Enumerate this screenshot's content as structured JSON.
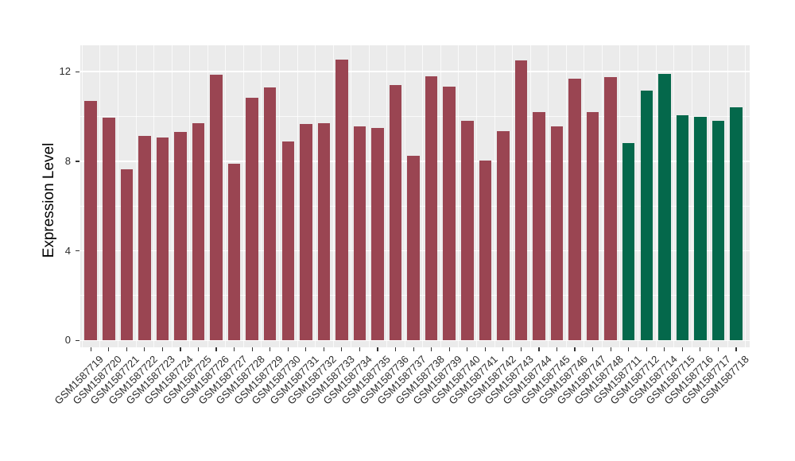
{
  "chart_data": {
    "type": "bar",
    "title": "",
    "xlabel": "",
    "ylabel": "Expression Level",
    "yticks": [
      0,
      4,
      8,
      12
    ],
    "ylim": [
      0,
      13.2
    ],
    "grid": "white major/minor gridlines on grey panel, legend none",
    "legend_position": "none",
    "categories": [
      "GSM1587719",
      "GSM1587720",
      "GSM1587721",
      "GSM1587722",
      "GSM1587723",
      "GSM1587724",
      "GSM1587725",
      "GSM1587726",
      "GSM1587727",
      "GSM1587728",
      "GSM1587729",
      "GSM1587730",
      "GSM1587731",
      "GSM1587732",
      "GSM1587733",
      "GSM1587734",
      "GSM1587735",
      "GSM1587736",
      "GSM1587737",
      "GSM1587738",
      "GSM1587739",
      "GSM1587740",
      "GSM1587741",
      "GSM1587742",
      "GSM1587743",
      "GSM1587744",
      "GSM1587745",
      "GSM1587746",
      "GSM1587747",
      "GSM1587748",
      "GSM1587711",
      "GSM1587712",
      "GSM1587714",
      "GSM1587715",
      "GSM1587716",
      "GSM1587717",
      "GSM1587718"
    ],
    "values": [
      10.7,
      9.95,
      7.65,
      9.15,
      9.05,
      9.3,
      9.7,
      11.85,
      7.9,
      10.85,
      11.3,
      8.9,
      9.65,
      9.7,
      12.55,
      9.55,
      9.5,
      11.4,
      8.25,
      11.8,
      11.35,
      9.8,
      8.05,
      9.35,
      12.5,
      10.2,
      9.55,
      11.7,
      10.2,
      11.75,
      8.8,
      11.15,
      11.9,
      10.05,
      10.0,
      9.8,
      10.4
    ],
    "groups": [
      "maroon",
      "maroon",
      "maroon",
      "maroon",
      "maroon",
      "maroon",
      "maroon",
      "maroon",
      "maroon",
      "maroon",
      "maroon",
      "maroon",
      "maroon",
      "maroon",
      "maroon",
      "maroon",
      "maroon",
      "maroon",
      "maroon",
      "maroon",
      "maroon",
      "maroon",
      "maroon",
      "maroon",
      "maroon",
      "maroon",
      "maroon",
      "maroon",
      "maroon",
      "maroon",
      "green",
      "green",
      "green",
      "green",
      "green",
      "green",
      "green"
    ],
    "group_colors": {
      "maroon": "#9A4552",
      "green": "#04684B"
    },
    "panel_background": "#EBEBEB",
    "gridline_color": "#FFFFFF",
    "tick_color": "#333333",
    "text_color": "#2B2B2B"
  }
}
